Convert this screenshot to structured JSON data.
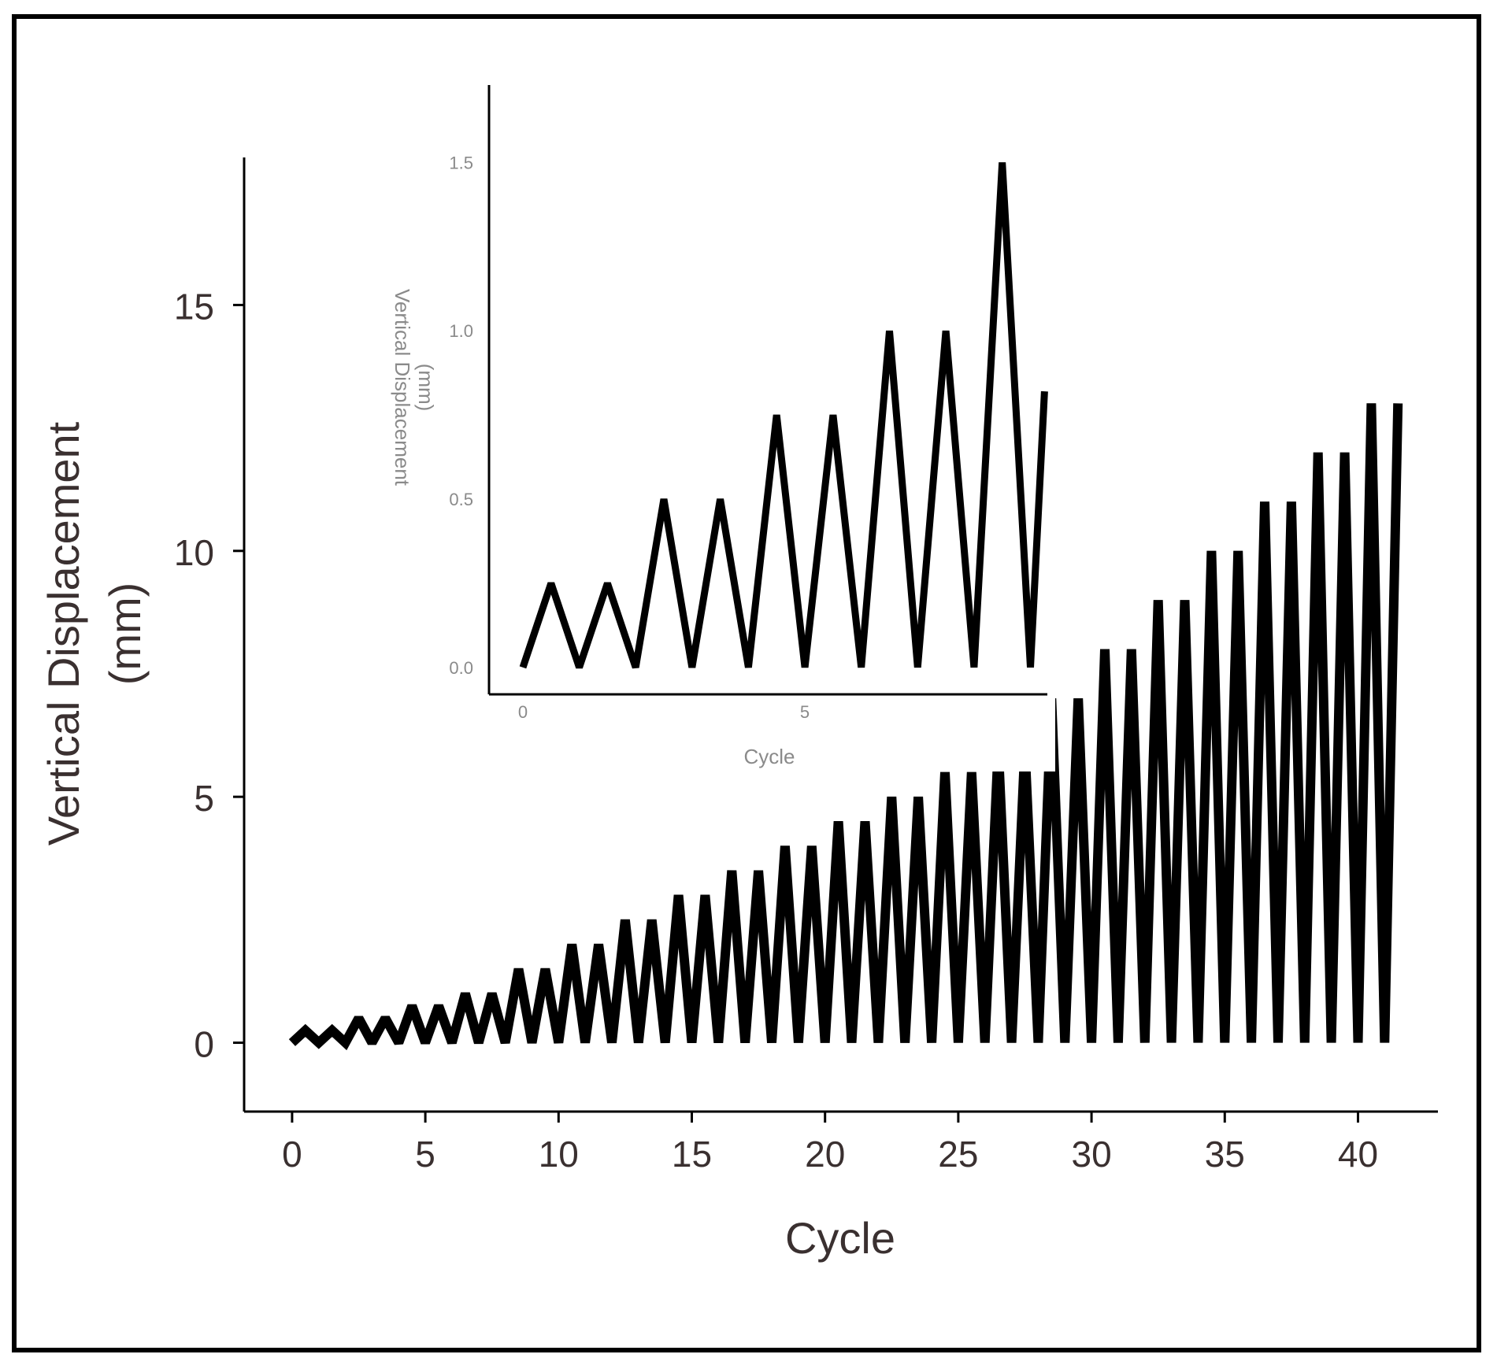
{
  "chart_data": [
    {
      "type": "line",
      "title": "",
      "xlabel": "Cycle",
      "ylabel_line1": "Vertical Displacement",
      "ylabel_line2": "(mm)",
      "xlim": [
        -1.8,
        43
      ],
      "ylim": [
        -1.4,
        18
      ],
      "xticks": [
        "0",
        "5",
        "10",
        "15",
        "20",
        "25",
        "30",
        "35",
        "40"
      ],
      "xtick_values": [
        0,
        5,
        10,
        15,
        20,
        25,
        30,
        35,
        40
      ],
      "yticks": [
        "0",
        "5",
        "10",
        "15"
      ],
      "ytick_values": [
        0,
        5,
        10,
        15
      ],
      "grid": false,
      "series": [
        {
          "description_of_pattern": "piecewise-linear sawtooth: each half-cycle rises to peak then falls to 0; peaks shown below",
          "peak_x": [
            0.5,
            1.5,
            2.5,
            3.5,
            4.5,
            5.5,
            6.5,
            7.5,
            8.5,
            9.5,
            10.5,
            11.5,
            12.5,
            13.5,
            14.5,
            15.5,
            16.5,
            17.5,
            18.5,
            19.5,
            20.5,
            21.5,
            22.5,
            23.5,
            24.5,
            25.5,
            26.5,
            27.5,
            28.5,
            29.5,
            30.5,
            31.5,
            32.5,
            33.5,
            34.5,
            35.5,
            36.5,
            37.5,
            38.5,
            39.5,
            40.5,
            41.5
          ],
          "peak_y": [
            0.25,
            0.25,
            0.5,
            0.5,
            0.75,
            0.75,
            1.0,
            1.0,
            1.5,
            1.5,
            2.0,
            2.0,
            2.5,
            2.5,
            3.0,
            3.0,
            3.5,
            3.5,
            4.0,
            4.0,
            4.5,
            4.5,
            5.0,
            5.0,
            5.5,
            5.5,
            6.0,
            6.0,
            7.0,
            7.0,
            8.0,
            8.0,
            9.0,
            9.0,
            10.0,
            10.0,
            11.0,
            11.0,
            12.0,
            12.0,
            13.0,
            13.0
          ],
          "trough_y": 0
        }
      ]
    },
    {
      "type": "line",
      "title": "",
      "xlabel": "Cycle",
      "ylabel_line1": "Vertical Displacement",
      "ylabel_line2": "(mm)",
      "xlim": [
        -0.6,
        9.3
      ],
      "ylim": [
        -0.08,
        1.73
      ],
      "xticks": [
        "0",
        "5"
      ],
      "xtick_values": [
        0,
        5
      ],
      "yticks": [
        "0.0",
        "0.5",
        "1.0",
        "1.5"
      ],
      "ytick_values": [
        0,
        0.5,
        1.0,
        1.5
      ],
      "grid": false,
      "series": [
        {
          "points_x": [
            0,
            0.5,
            1,
            1.5,
            2,
            2.5,
            3,
            3.5,
            4,
            4.5,
            5,
            5.5,
            6,
            6.5,
            7,
            7.5,
            8,
            8.5,
            9,
            9.25
          ],
          "points_y": [
            0,
            0.25,
            0,
            0.25,
            0,
            0.5,
            0,
            0.5,
            0,
            0.75,
            0,
            0.75,
            0,
            1.0,
            0,
            1.0,
            0,
            1.5,
            0,
            0.82
          ]
        }
      ]
    }
  ]
}
